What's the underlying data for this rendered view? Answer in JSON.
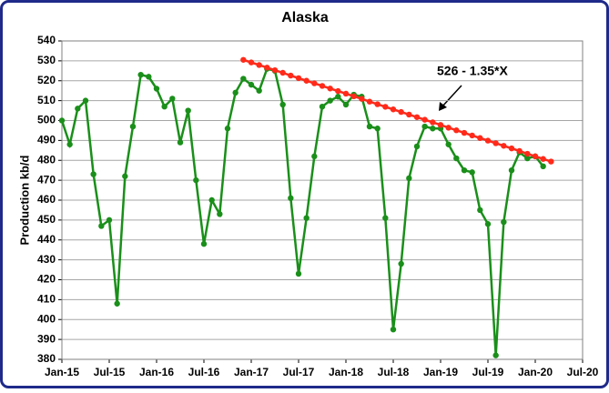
{
  "chart_data": {
    "type": "line",
    "title": "Alaska",
    "y_label": "Production kb/d",
    "annotation": "526 - 1.35*X",
    "xlim": [
      0,
      66
    ],
    "xticks": [
      {
        "value": 0,
        "label": "Jan-15"
      },
      {
        "value": 6,
        "label": "Jul-15"
      },
      {
        "value": 12,
        "label": "Jan-16"
      },
      {
        "value": 18,
        "label": "Jul-16"
      },
      {
        "value": 24,
        "label": "Jan-17"
      },
      {
        "value": 30,
        "label": "Jul-17"
      },
      {
        "value": 36,
        "label": "Jan-18"
      },
      {
        "value": 42,
        "label": "Jul-18"
      },
      {
        "value": 48,
        "label": "Jan-19"
      },
      {
        "value": 54,
        "label": "Jul-19"
      },
      {
        "value": 60,
        "label": "Jan-20"
      },
      {
        "value": 66,
        "label": "Jul-20"
      }
    ],
    "ylim": [
      380,
      540
    ],
    "yticks": [
      380,
      390,
      400,
      410,
      420,
      430,
      440,
      450,
      460,
      470,
      480,
      490,
      500,
      510,
      520,
      530,
      540
    ],
    "grid": true,
    "series": [
      {
        "color": "#1a8f1a",
        "x": [
          0,
          1,
          2,
          3,
          4,
          5,
          6,
          7,
          8,
          9,
          10,
          11,
          12,
          13,
          14,
          15,
          16,
          17,
          18,
          19,
          20,
          21,
          22,
          23,
          24,
          25,
          26,
          27,
          28,
          29,
          30,
          31,
          32,
          33,
          34,
          35,
          36,
          37,
          38,
          39,
          40,
          41,
          42,
          43,
          44,
          45,
          46,
          47,
          48,
          49,
          50,
          51,
          52,
          53,
          54,
          55,
          56,
          57,
          58,
          59,
          60,
          61
        ],
        "values": [
          500,
          488,
          506,
          510,
          473,
          447,
          450,
          408,
          472,
          497,
          523,
          522,
          516,
          507,
          511,
          489,
          505,
          470,
          438,
          460,
          453,
          496,
          514,
          521,
          518,
          515,
          526,
          525,
          508,
          461,
          423,
          451,
          482,
          507,
          510,
          512,
          508,
          513,
          512,
          497,
          496,
          451,
          395,
          428,
          471,
          487,
          497,
          496,
          496,
          488,
          481,
          475,
          474,
          455,
          448,
          382,
          449,
          475,
          484,
          481,
          482,
          477
        ]
      },
      {
        "color": "#ff2a1a",
        "x": [
          23,
          24,
          25,
          26,
          27,
          28,
          29,
          30,
          31,
          32,
          33,
          34,
          35,
          36,
          37,
          38,
          39,
          40,
          41,
          42,
          43,
          44,
          45,
          46,
          47,
          48,
          49,
          50,
          51,
          52,
          53,
          54,
          55,
          56,
          57,
          58,
          59,
          60,
          61,
          62
        ],
        "values": [
          530.5,
          529.2,
          527.9,
          526.6,
          525.3,
          524,
          522.6,
          521.3,
          520,
          518.7,
          517.4,
          516.1,
          514.8,
          513.5,
          512.2,
          510.9,
          509.5,
          508.2,
          506.9,
          505.6,
          504.3,
          503,
          501.7,
          500.4,
          499.1,
          497.8,
          496.4,
          495.1,
          493.8,
          492.5,
          491.2,
          489.9,
          488.6,
          487.3,
          486,
          484.7,
          483.3,
          482,
          480.7,
          479.4
        ]
      }
    ]
  }
}
